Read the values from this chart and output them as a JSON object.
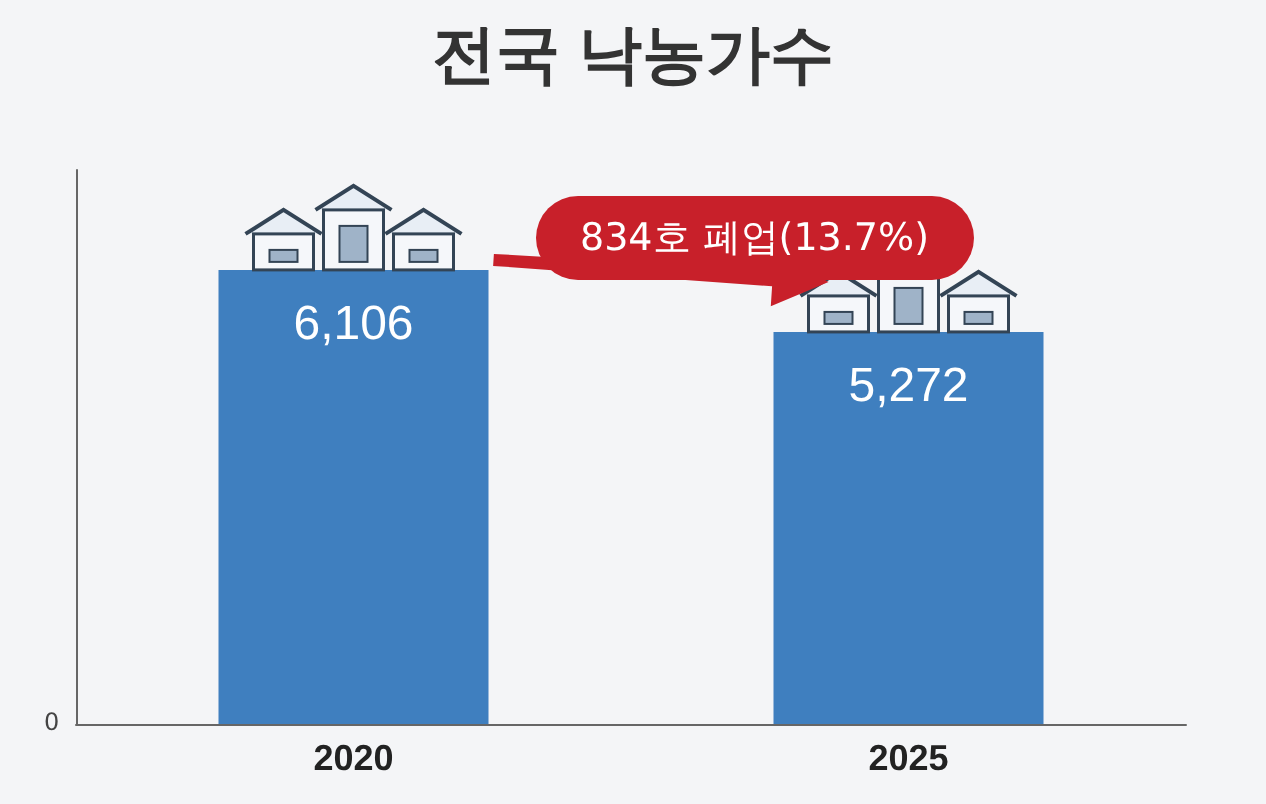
{
  "chart_data": {
    "type": "bar",
    "title": "전국 낙농가수",
    "categories": [
      "2020",
      "2025"
    ],
    "values": [
      6106,
      5272
    ],
    "value_labels": [
      "6,106",
      "5,272"
    ],
    "color": "#3f7fbf",
    "annotations": [
      "834호 폐업(13.7%)",
      "0"
    ]
  }
}
